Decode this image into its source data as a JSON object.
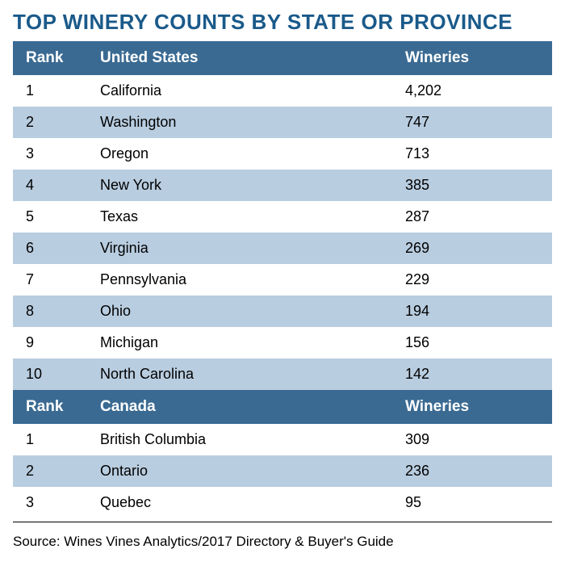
{
  "title": "TOP WINERY COUNTS BY STATE OR PROVINCE",
  "title_color": "#1a5a8a",
  "colors": {
    "header_bg": "#3a6a92",
    "header_fg": "#ffffff",
    "row_odd_bg": "#ffffff",
    "row_even_bg": "#b9cde0",
    "text": "#000000"
  },
  "sections": [
    {
      "header": {
        "rank": "Rank",
        "name": "United States",
        "value": "Wineries"
      },
      "rows": [
        {
          "rank": "1",
          "name": "California",
          "value": "4,202"
        },
        {
          "rank": "2",
          "name": "Washington",
          "value": "747"
        },
        {
          "rank": "3",
          "name": "Oregon",
          "value": "713"
        },
        {
          "rank": "4",
          "name": "New York",
          "value": "385"
        },
        {
          "rank": "5",
          "name": "Texas",
          "value": "287"
        },
        {
          "rank": "6",
          "name": "Virginia",
          "value": "269"
        },
        {
          "rank": "7",
          "name": "Pennsylvania",
          "value": "229"
        },
        {
          "rank": "8",
          "name": "Ohio",
          "value": "194"
        },
        {
          "rank": "9",
          "name": "Michigan",
          "value": "156"
        },
        {
          "rank": "10",
          "name": "North Carolina",
          "value": "142"
        }
      ]
    },
    {
      "header": {
        "rank": "Rank",
        "name": "Canada",
        "value": "Wineries"
      },
      "rows": [
        {
          "rank": "1",
          "name": "British Columbia",
          "value": "309"
        },
        {
          "rank": "2",
          "name": "Ontario",
          "value": "236"
        },
        {
          "rank": "3",
          "name": "Quebec",
          "value": "95"
        }
      ]
    }
  ],
  "source": "Source: Wines Vines Analytics/2017 Directory & Buyer's Guide"
}
